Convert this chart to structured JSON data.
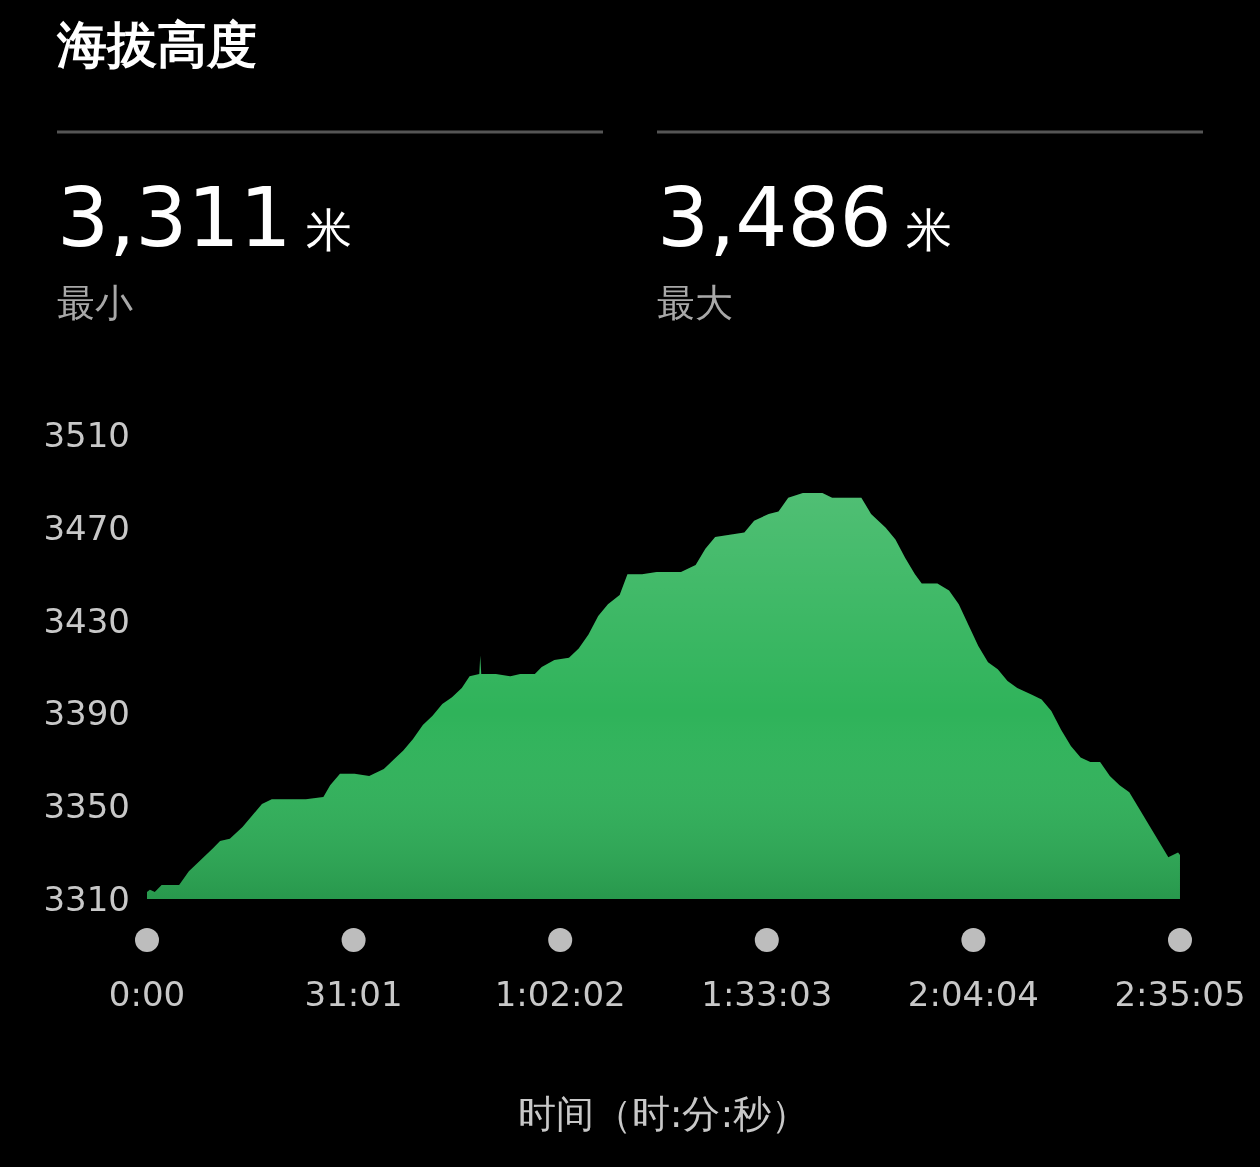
{
  "chart_data": {
    "type": "area",
    "title": "海拔高度",
    "annotations": [
      "3,311 米",
      "最小",
      "3,486 米",
      "最大"
    ],
    "xlabel": "时间（时:分:秒）",
    "color": "#2fb35a",
    "x": [
      0,
      0.44,
      1.17,
      2.2,
      4.83,
      6.29,
      7.75,
      9.95,
      10.97,
      12.44,
      14.34,
      15.8,
      17.26,
      18.73,
      20.92,
      23.85,
      26.48,
      27.5,
      28.97,
      31.16,
      33.36,
      35.55,
      37.01,
      38.48,
      39.94,
      41.41,
      42.87,
      44.33,
      45.79,
      47.26,
      48.43,
      49.89,
      50.03,
      50.18,
      52.38,
      54.57,
      56.03,
      58.23,
      59.26,
      61.16,
      63.35,
      64.81,
      66.28,
      67.74,
      69.2,
      70.96,
      72.13,
      74.32,
      76.52,
      80.17,
      82.37,
      83.83,
      85.3,
      87.49,
      89.68,
      91.15,
      93.34,
      94.81,
      96.27,
      98.47,
      101.39,
      102.85,
      104.32,
      107.24,
      108.7,
      110.9,
      112.36,
      113.83,
      115.29,
      116.31,
      118.66,
      120.41,
      121.87,
      123.34,
      124.8,
      126.26,
      127.72,
      129.19,
      130.65,
      132.85,
      134.31,
      135.77,
      137.23,
      138.7,
      140.16,
      141.62,
      143.09,
      144.55,
      146.01,
      147.47,
      148.94,
      150.4,
      151.87,
      153.33,
      154.79,
      155.08
    ],
    "values": [
      3313,
      3314,
      3313,
      3316,
      3316,
      3322,
      3326,
      3332,
      3335,
      3336,
      3341,
      3346,
      3351,
      3353,
      3353,
      3353,
      3354,
      3359,
      3364,
      3364,
      3363,
      3366,
      3370,
      3374,
      3379,
      3385,
      3389,
      3394,
      3397,
      3401,
      3406,
      3407,
      3415,
      3407,
      3407,
      3406,
      3407,
      3407,
      3410,
      3413,
      3414,
      3418,
      3424,
      3432,
      3437,
      3441,
      3450,
      3450,
      3451,
      3451,
      3454,
      3461,
      3466,
      3467,
      3468,
      3473,
      3476,
      3477,
      3483,
      3485,
      3485,
      3483,
      3483,
      3483,
      3476,
      3470,
      3465,
      3457,
      3450,
      3446,
      3446,
      3443,
      3437,
      3428,
      3419,
      3412,
      3409,
      3404,
      3401,
      3398,
      3396,
      3391,
      3383,
      3376,
      3371,
      3369,
      3369,
      3363,
      3359,
      3356,
      3349,
      3342,
      3335,
      3328,
      3330,
      3329
    ],
    "xlim": [
      0,
      155.0833
    ],
    "xticks": [
      {
        "value": 0,
        "label": "0:00"
      },
      {
        "value": 31.0167,
        "label": "31:01"
      },
      {
        "value": 62.0333,
        "label": "1:02:02"
      },
      {
        "value": 93.05,
        "label": "1:33:03"
      },
      {
        "value": 124.0667,
        "label": "2:04:04"
      },
      {
        "value": 155.0833,
        "label": "2:35:05"
      }
    ],
    "ylim": [
      3310,
      3510
    ],
    "yticks": [
      3310,
      3350,
      3390,
      3430,
      3470,
      3510
    ],
    "grid": false
  }
}
